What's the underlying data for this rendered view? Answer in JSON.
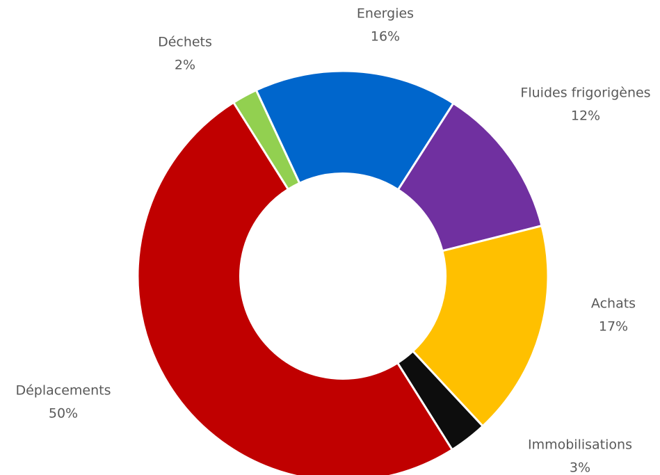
{
  "chart_data": {
    "type": "pie",
    "subtype": "donut",
    "slices": [
      {
        "label": "Energies",
        "value": 16,
        "value_label": "16%",
        "color": "#0066cc"
      },
      {
        "label": "Fluides frigorigènes",
        "value": 12,
        "value_label": "12%",
        "color": "#7030a0"
      },
      {
        "label": "Achats",
        "value": 17,
        "value_label": "17%",
        "color": "#ffc000"
      },
      {
        "label": "Immobilisations",
        "value": 3,
        "value_label": "3%",
        "color": "#0d0d0d"
      },
      {
        "label": "Déplacements",
        "value": 50,
        "value_label": "50%",
        "color": "#c00000"
      },
      {
        "label": "Déchets",
        "value": 2,
        "value_label": "2%",
        "color": "#92d050"
      }
    ],
    "start_angle_deg": -25,
    "direction": "clockwise",
    "hole_ratio": 0.5,
    "slice_border_color": "#ffffff",
    "label_color": "#595959",
    "legend": "none"
  }
}
